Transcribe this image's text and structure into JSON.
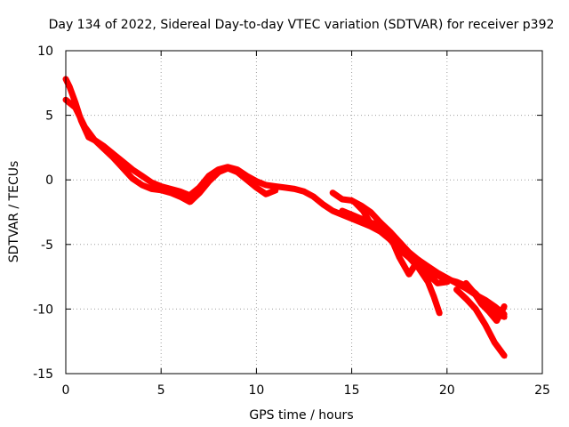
{
  "chart_data": {
    "type": "scatter",
    "title": "Day 134 of 2022, Sidereal Day-to-day VTEC variation (SDTVAR) for receiver p392",
    "xlabel": "GPS time / hours",
    "ylabel": "SDTVAR / TECUs",
    "xlim": [
      0,
      25
    ],
    "ylim": [
      -15,
      10
    ],
    "xticks": [
      0,
      5,
      10,
      15,
      20,
      25
    ],
    "xtick_labels": [
      "0",
      "5",
      "10",
      "15",
      "20",
      "25"
    ],
    "yticks": [
      -15,
      -10,
      -5,
      0,
      5,
      10
    ],
    "ytick_labels": [
      "-15",
      "-10",
      "-5",
      "0",
      "5",
      "10"
    ],
    "grid": true,
    "color": "#ff0000",
    "series": [
      {
        "name": "trace-main",
        "x": [
          0,
          0.2,
          0.5,
          0.8,
          1.2,
          1.6,
          2.0,
          2.5,
          3.0,
          3.5,
          4.0,
          4.5,
          5.0,
          5.5,
          6.0,
          6.5,
          7.0,
          7.5,
          8.0,
          8.5,
          9.0,
          9.5,
          10.0,
          10.5,
          11.0,
          11.5,
          12.0,
          12.5,
          13.0,
          13.5,
          14.0,
          14.5,
          15.0,
          15.5,
          16.0,
          16.5,
          17.0,
          17.5,
          18.0,
          18.5,
          19.0,
          19.5,
          20.0,
          20.5,
          21.0,
          21.5,
          22.0,
          22.5,
          23.0
        ],
        "y": [
          7.8,
          7.2,
          6.0,
          4.6,
          3.3,
          3.0,
          2.6,
          2.0,
          1.4,
          0.8,
          0.3,
          -0.2,
          -0.5,
          -0.7,
          -0.9,
          -1.2,
          -0.6,
          0.3,
          0.8,
          1.0,
          0.8,
          0.3,
          -0.1,
          -0.4,
          -0.5,
          -0.6,
          -0.7,
          -0.9,
          -1.3,
          -1.9,
          -2.4,
          -2.7,
          -3.0,
          -3.3,
          -3.6,
          -4.0,
          -4.6,
          -5.3,
          -6.0,
          -6.6,
          -7.0,
          -7.4,
          -7.7,
          -7.9,
          -8.2,
          -8.8,
          -9.6,
          -10.3,
          -10.6
        ]
      },
      {
        "name": "trace-lower",
        "x": [
          0,
          0.5,
          1.0,
          1.5,
          2.0,
          2.5,
          3.0,
          3.5,
          4.0,
          4.5,
          5.0,
          5.5,
          6.0,
          6.5,
          7.0,
          7.5,
          8.0,
          8.5,
          9.0,
          9.5,
          10.0,
          10.5,
          11.0
        ],
        "y": [
          6.2,
          5.6,
          4.1,
          3.1,
          2.4,
          1.7,
          0.9,
          0.1,
          -0.4,
          -0.7,
          -0.8,
          -1.0,
          -1.3,
          -1.7,
          -1.0,
          -0.1,
          0.6,
          0.9,
          0.6,
          0.0,
          -0.6,
          -1.1,
          -0.8
        ]
      },
      {
        "name": "trace-upper-end",
        "x": [
          14.0,
          14.5,
          15.0,
          15.5,
          16.0,
          16.5,
          17.0,
          17.5,
          18.0,
          18.5,
          19.0,
          19.5,
          20.0,
          20.5,
          21.0,
          21.5,
          22.0,
          22.5,
          23.0
        ],
        "y": [
          -1.0,
          -1.5,
          -1.6,
          -2.0,
          -2.5,
          -3.3,
          -4.0,
          -4.8,
          -5.6,
          -6.2,
          -6.7,
          -7.2,
          -7.6,
          -8.0,
          -8.4,
          -8.9,
          -9.3,
          -9.8,
          -10.4
        ]
      },
      {
        "name": "trace-drop-a",
        "x": [
          14.5,
          15.0,
          15.5,
          16.0,
          16.5,
          17.0,
          17.5,
          18.0,
          18.5,
          19.0,
          19.3,
          19.6
        ],
        "y": [
          -2.4,
          -2.7,
          -3.0,
          -3.3,
          -3.9,
          -4.6,
          -5.4,
          -6.0,
          -6.8,
          -7.9,
          -9.0,
          -10.3
        ]
      },
      {
        "name": "trace-drop-b",
        "x": [
          15.2,
          15.6,
          16.0,
          16.5,
          17.0,
          17.5,
          18.0,
          18.5,
          19.0,
          19.5,
          20.0
        ],
        "y": [
          -1.8,
          -2.4,
          -3.4,
          -3.3,
          -4.3,
          -6.0,
          -7.3,
          -6.2,
          -7.3,
          -8.0,
          -7.9
        ]
      },
      {
        "name": "trace-drop-c",
        "x": [
          20.5,
          21.0,
          21.5,
          22.0,
          22.5,
          23.0
        ],
        "y": [
          -8.5,
          -9.2,
          -10.0,
          -11.2,
          -12.6,
          -13.6
        ]
      },
      {
        "name": "trace-tail",
        "x": [
          21.0,
          21.4,
          21.8,
          22.2,
          22.6,
          23.0
        ],
        "y": [
          -8.0,
          -8.7,
          -9.6,
          -10.2,
          -10.9,
          -9.8
        ]
      }
    ]
  }
}
